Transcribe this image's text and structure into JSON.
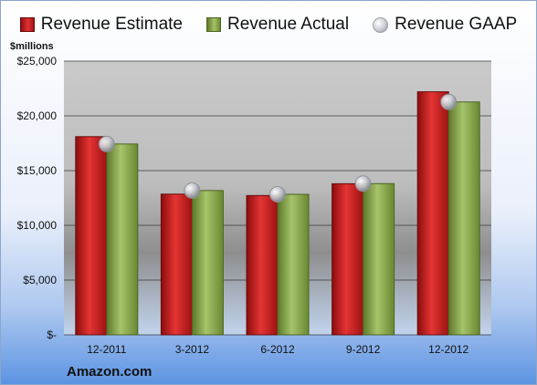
{
  "chart_data": {
    "type": "bar",
    "unit_label": "$millions",
    "source_label": "Amazon.com",
    "categories": [
      "12-2011",
      "3-2012",
      "6-2012",
      "9-2012",
      "12-2012"
    ],
    "series": [
      {
        "name": "Revenue Estimate",
        "kind": "bar",
        "color": "#cc2020",
        "values": [
          18100,
          12850,
          12720,
          13800,
          22200
        ]
      },
      {
        "name": "Revenue Actual",
        "kind": "bar",
        "color": "#8fad55",
        "values": [
          17430,
          13180,
          12830,
          13810,
          21270
        ]
      },
      {
        "name": "Revenue GAAP",
        "kind": "marker",
        "color": "#c8ccd2",
        "values": [
          17430,
          13180,
          12830,
          13810,
          21270
        ]
      }
    ],
    "ylim": [
      0,
      25000
    ],
    "yticks": [
      0,
      5000,
      10000,
      15000,
      20000,
      25000
    ],
    "ytick_labels": [
      "$-",
      "$5,000",
      "$10,000",
      "$15,000",
      "$20,000",
      "$25,000"
    ],
    "grid": true,
    "legend_position": "top"
  }
}
